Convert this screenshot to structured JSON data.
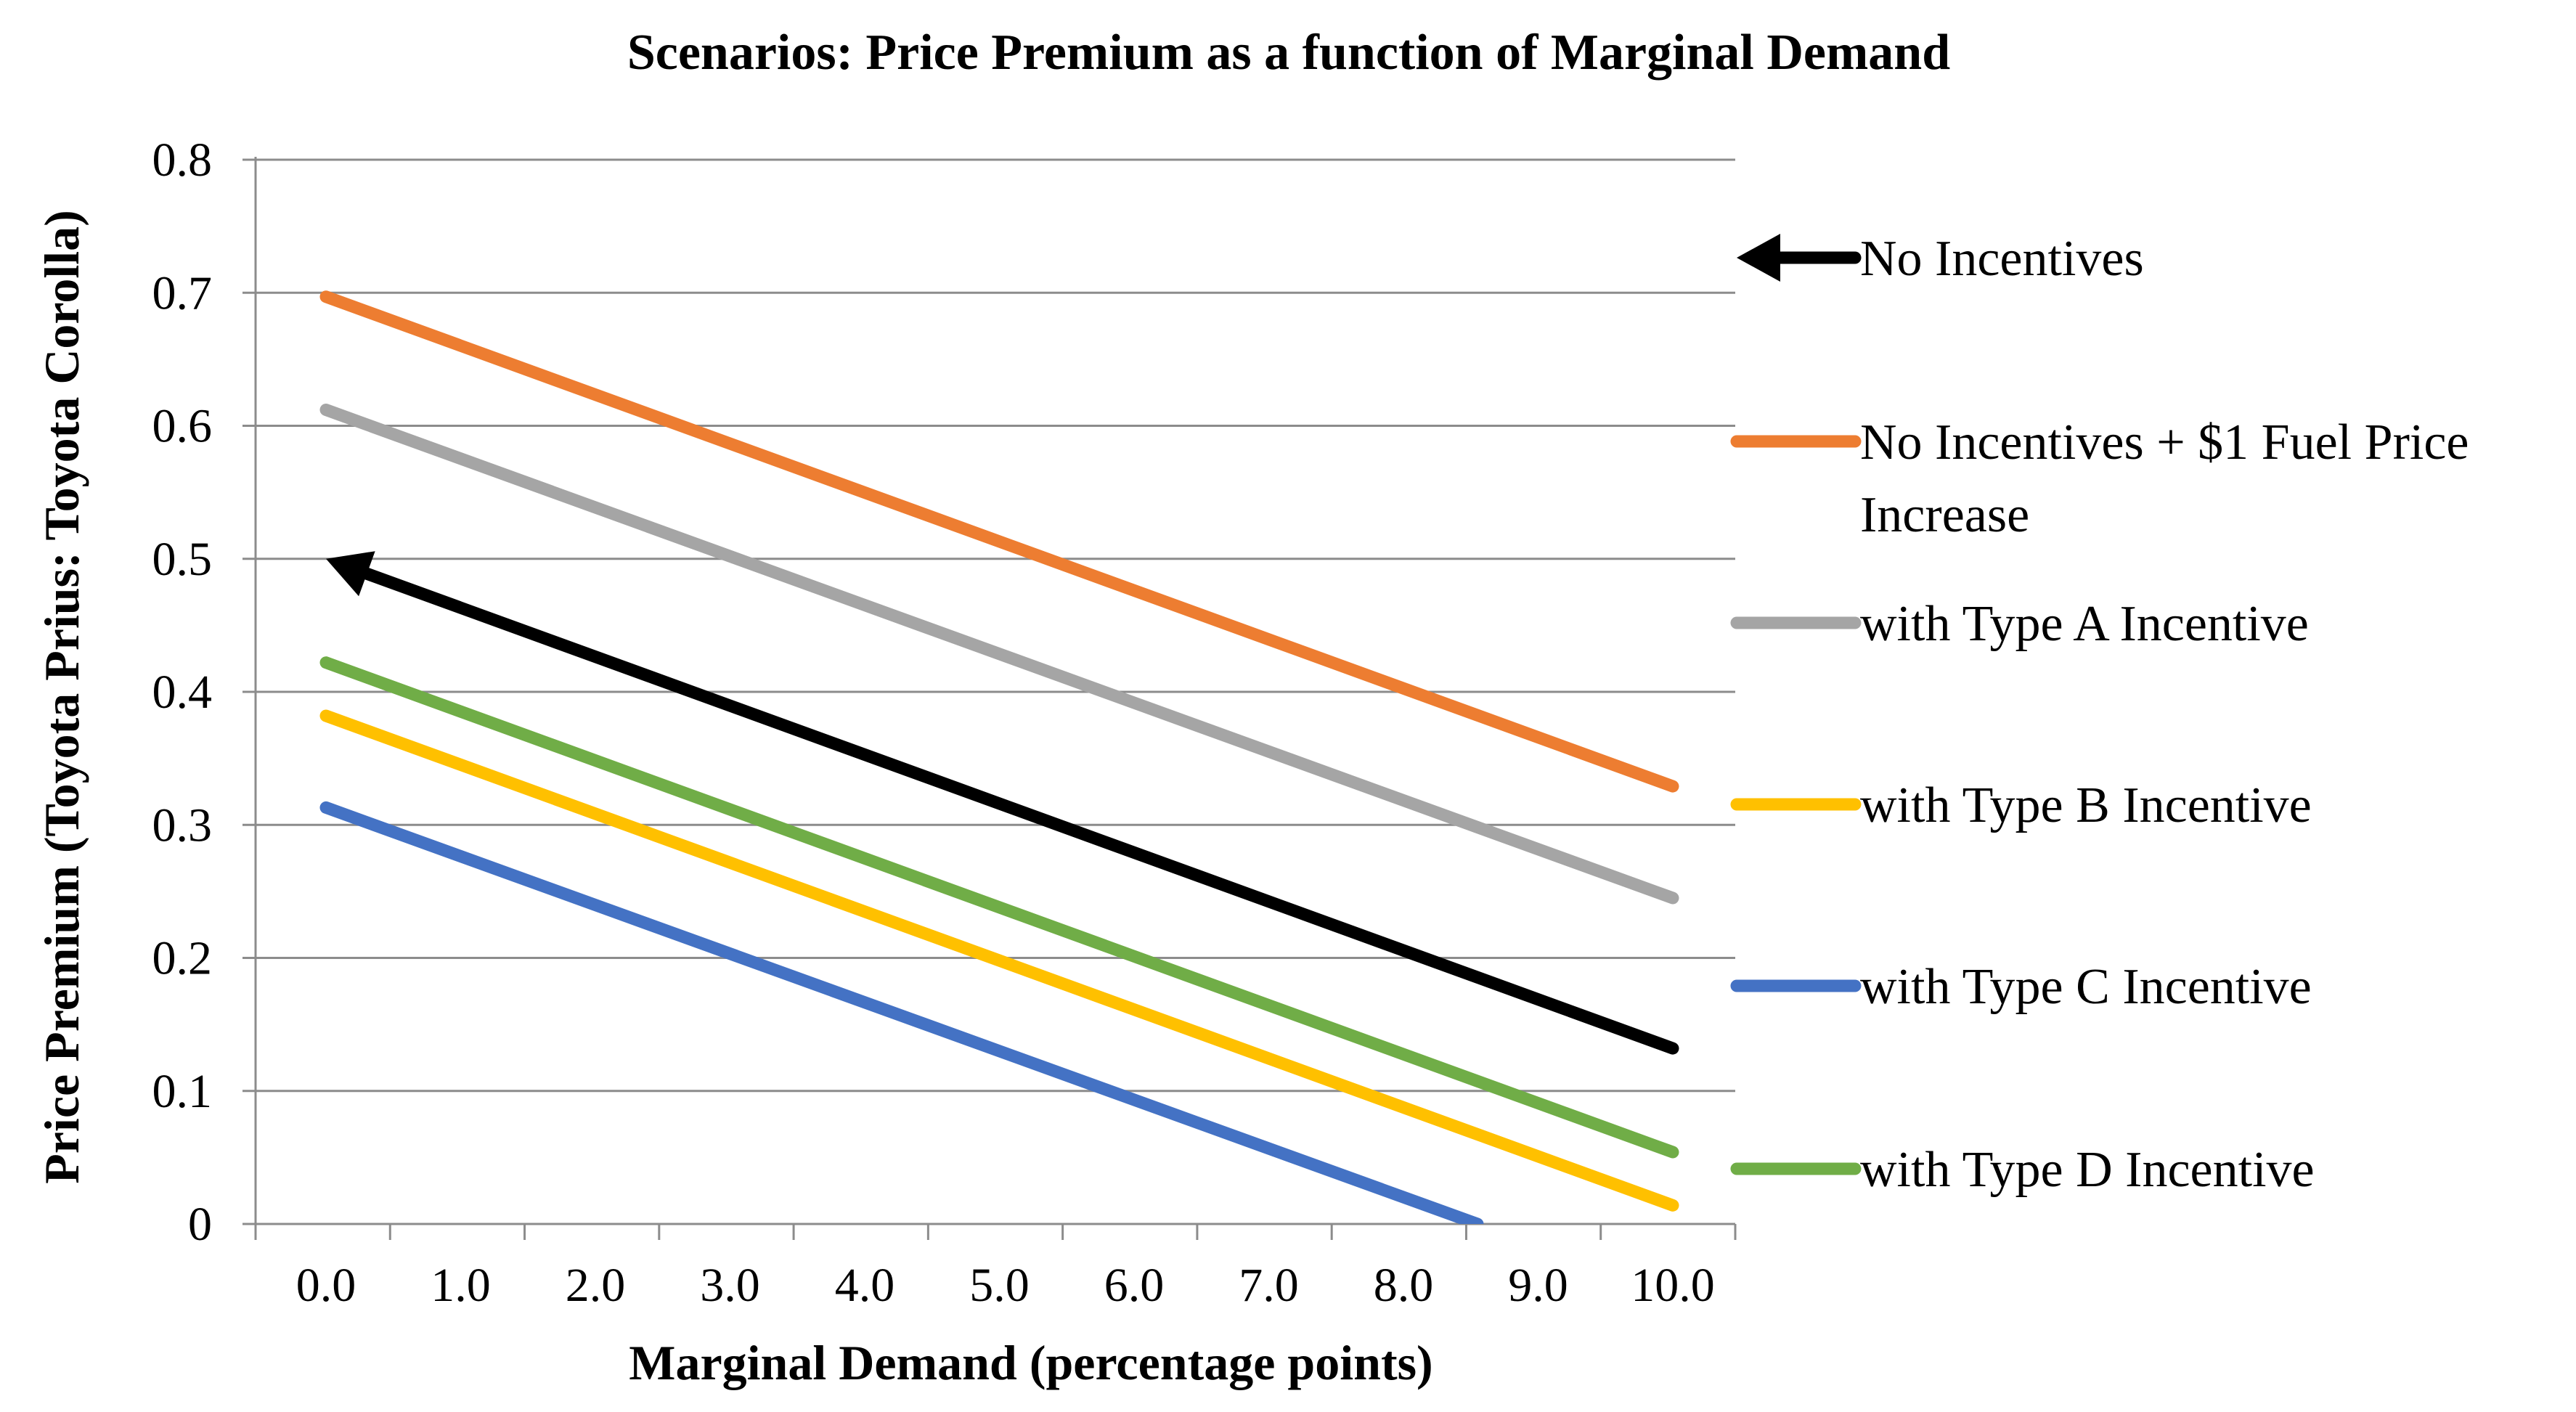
{
  "chart_data": {
    "type": "line",
    "title": "Scenarios: Price Premium as a function of Marginal Demand",
    "xlabel": "Marginal Demand (percentage points)",
    "ylabel": "Price Premium (Toyota Prius: Toyota Corolla)",
    "x_tick_labels": [
      "0.0",
      "1.0",
      "2.0",
      "3.0",
      "4.0",
      "5.0",
      "6.0",
      "7.0",
      "8.0",
      "9.0",
      "10.0"
    ],
    "y_tick_labels": [
      "0",
      "0.1",
      "0.2",
      "0.3",
      "0.4",
      "0.5",
      "0.6",
      "0.7",
      "0.8"
    ],
    "ylim": [
      0,
      0.8
    ],
    "grid": true,
    "legend_position": "right",
    "series": [
      {
        "name": "No Incentives",
        "legend_lines": [
          "No Incentives"
        ],
        "color": "#000000",
        "marker": "arrow-start",
        "x": [
          0,
          10
        ],
        "values": [
          0.5,
          0.132
        ]
      },
      {
        "name": "No Incentives + $1 Fuel Price Increase",
        "legend_lines": [
          "No Incentives + $1 Fuel Price",
          "Increase"
        ],
        "color": "#ED7D31",
        "marker": "none",
        "x": [
          0,
          10
        ],
        "values": [
          0.697,
          0.329
        ]
      },
      {
        "name": "with Type A Incentive",
        "legend_lines": [
          "with Type A Incentive"
        ],
        "color": "#A5A5A5",
        "marker": "none",
        "x": [
          0,
          10
        ],
        "values": [
          0.612,
          0.245
        ]
      },
      {
        "name": "with Type B Incentive",
        "legend_lines": [
          "with Type B Incentive"
        ],
        "color": "#FFC000",
        "marker": "none",
        "x": [
          0,
          10
        ],
        "values": [
          0.382,
          0.014
        ]
      },
      {
        "name": "with Type C Incentive",
        "legend_lines": [
          "with Type C Incentive"
        ],
        "color": "#4472C4",
        "marker": "none",
        "x": [
          0,
          8.55
        ],
        "values": [
          0.313,
          0.0
        ]
      },
      {
        "name": "with Type D Incentive",
        "legend_lines": [
          "with Type D Incentive"
        ],
        "color": "#70AD47",
        "marker": "none",
        "x": [
          0,
          10
        ],
        "values": [
          0.422,
          0.054
        ]
      }
    ]
  }
}
